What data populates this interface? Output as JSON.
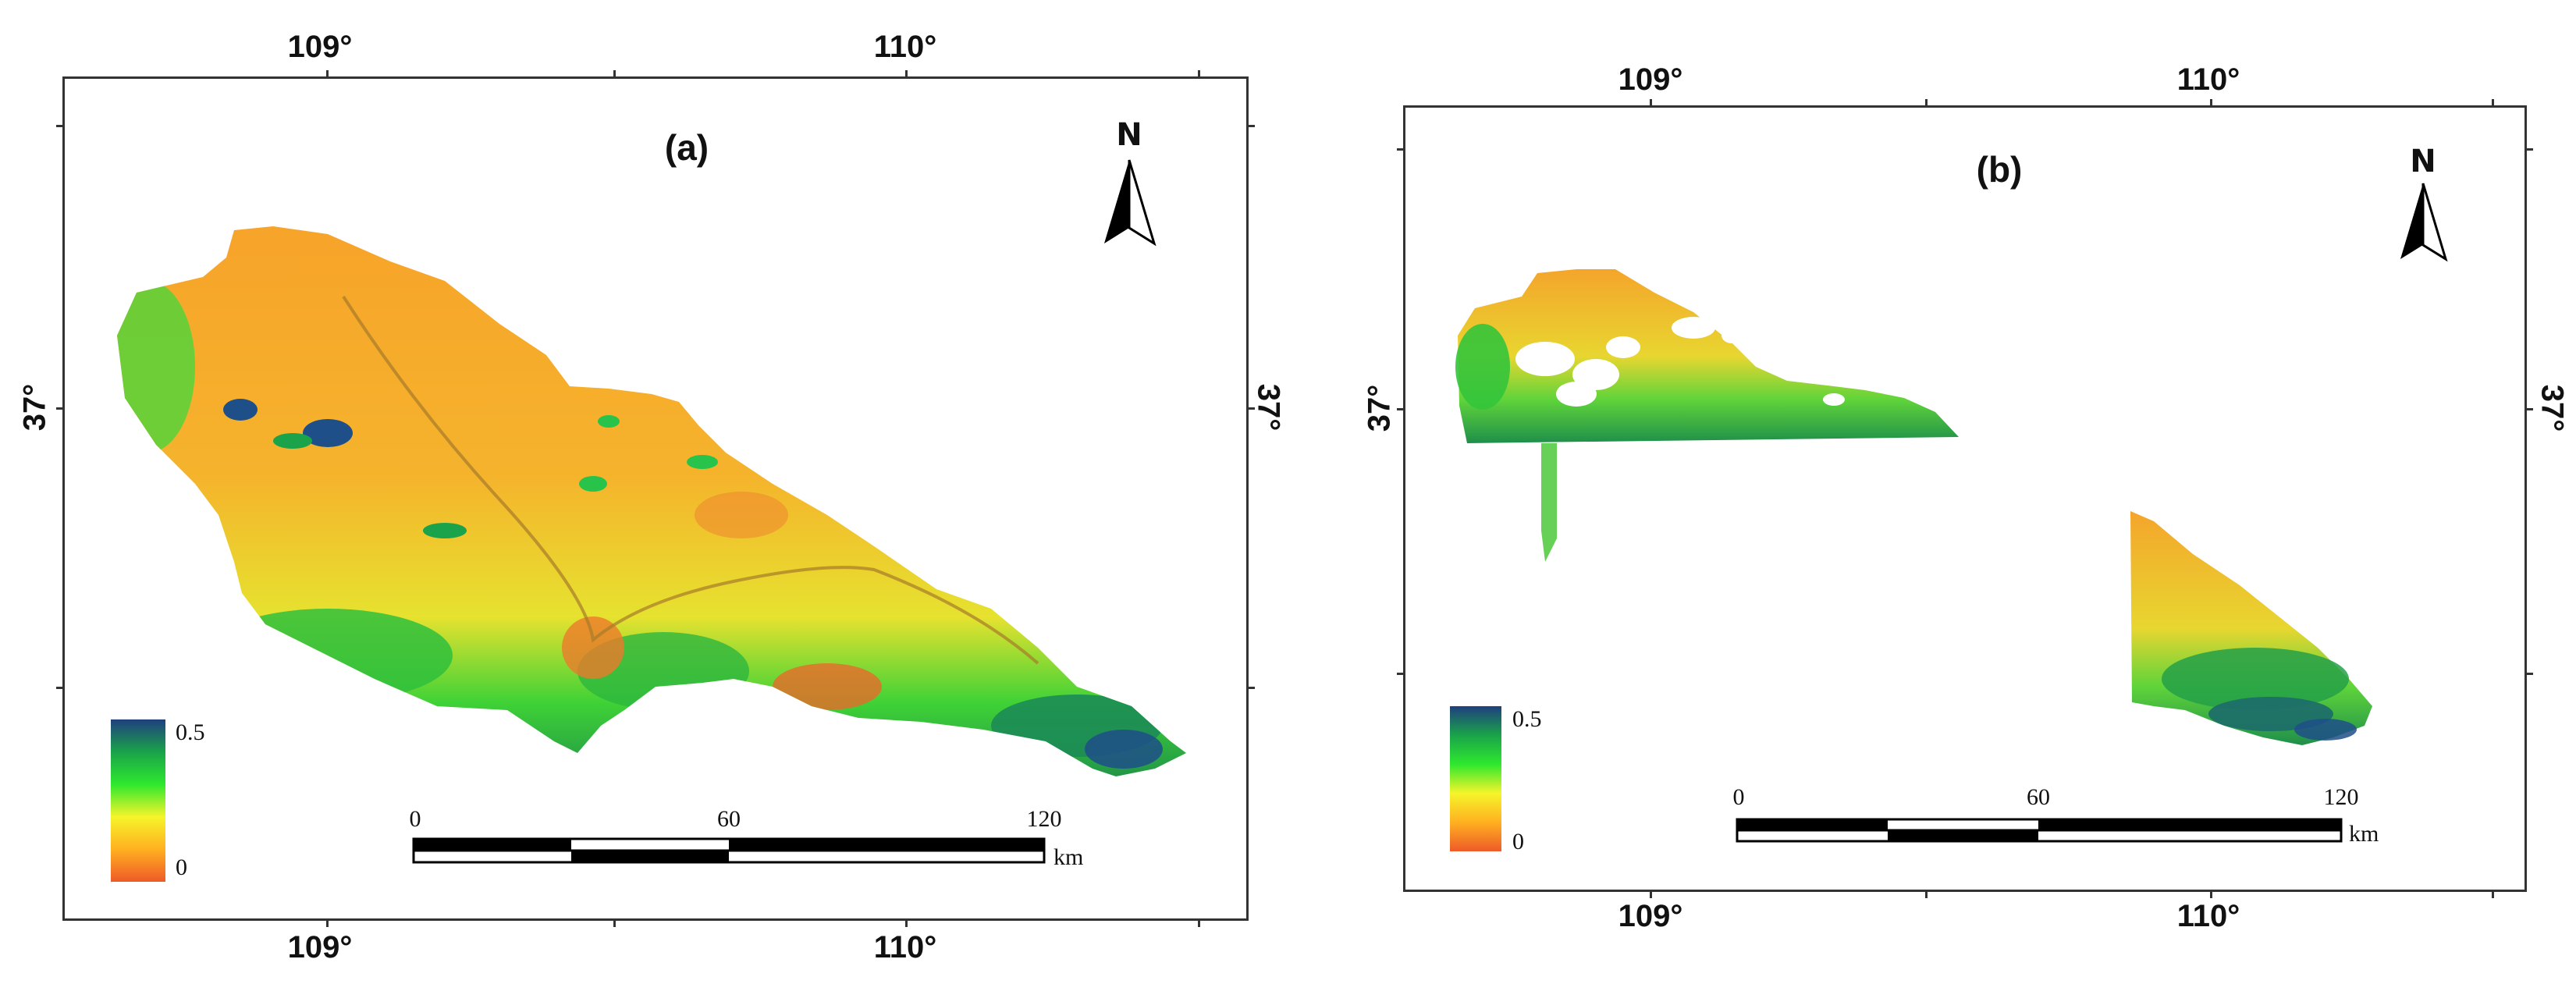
{
  "panels": [
    {
      "id": "a",
      "label": "(a)",
      "north": "N",
      "lon_ticks": [
        "109°",
        "110°"
      ],
      "lat_ticks": [
        "37°"
      ],
      "legend": {
        "max": "0.5",
        "min": "0",
        "colors": [
          "#1f3f7f",
          "#1aa34a",
          "#2ee82e",
          "#f5f52a",
          "#ffb020",
          "#ee5a28"
        ]
      },
      "scalebar": {
        "ticks": [
          "0",
          "60",
          "120"
        ],
        "unit": "km"
      },
      "gaps": false
    },
    {
      "id": "b",
      "label": "(b)",
      "north": "N",
      "lon_ticks": [
        "109°",
        "110°"
      ],
      "lat_ticks": [
        "37°"
      ],
      "legend": {
        "max": "0.5",
        "min": "0",
        "colors": [
          "#1f3f7f",
          "#1aa34a",
          "#2ee82e",
          "#f5f52a",
          "#ffb020",
          "#ee5a28"
        ]
      },
      "scalebar": {
        "ticks": [
          "0",
          "60",
          "120"
        ],
        "unit": "km"
      },
      "gaps": true
    }
  ]
}
